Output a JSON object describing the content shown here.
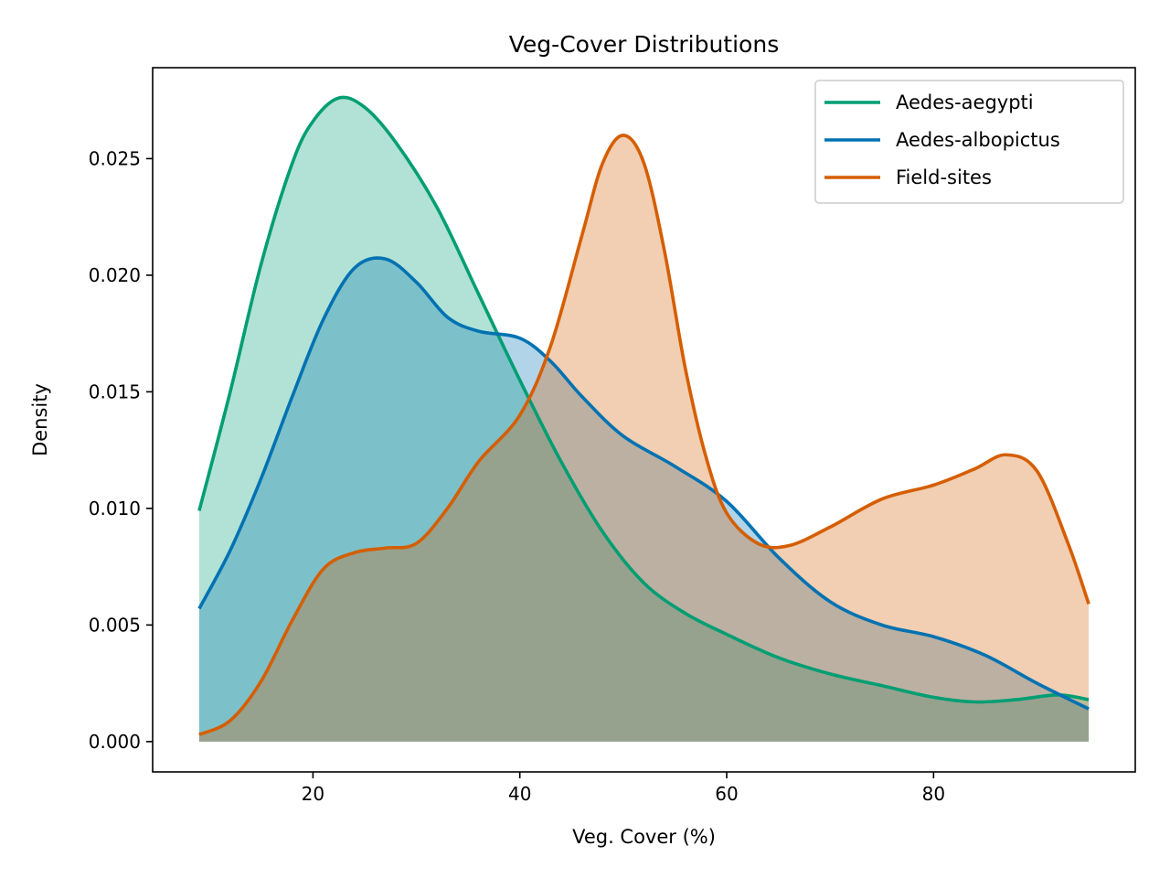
{
  "chart_data": {
    "type": "area",
    "title": "Veg-Cover Distributions",
    "xlabel": "Veg. Cover (%)",
    "ylabel": "Density",
    "xlim": [
      4.5,
      99.5
    ],
    "ylim": [
      -0.0013,
      0.0289
    ],
    "xticks": [
      20,
      40,
      60,
      80
    ],
    "xtick_labels": [
      "20",
      "40",
      "60",
      "80"
    ],
    "yticks": [
      0.0,
      0.005,
      0.01,
      0.015,
      0.02,
      0.025
    ],
    "ytick_labels": [
      "0.000",
      "0.005",
      "0.010",
      "0.015",
      "0.020",
      "0.025"
    ],
    "grid": false,
    "legend": "upper right",
    "series": [
      {
        "name": "Aedes-aegypti",
        "color": "#009e73",
        "x": [
          9,
          12,
          15,
          18,
          20,
          22.5,
          25,
          28,
          32,
          36,
          40,
          44,
          48,
          52,
          56,
          60,
          65,
          70,
          75,
          80,
          84,
          88,
          92,
          95
        ],
        "y": [
          0.0099,
          0.015,
          0.0205,
          0.0248,
          0.0266,
          0.0276,
          0.0272,
          0.0257,
          0.0229,
          0.0192,
          0.0155,
          0.012,
          0.009,
          0.0068,
          0.0055,
          0.0046,
          0.0036,
          0.0029,
          0.0024,
          0.0019,
          0.0017,
          0.0018,
          0.002,
          0.0018
        ]
      },
      {
        "name": "Aedes-albopictus",
        "color": "#0072b2",
        "x": [
          9,
          12,
          15,
          18,
          21,
          24,
          27,
          30,
          33,
          36,
          40,
          43,
          46,
          50,
          55,
          60,
          65,
          70,
          75,
          80,
          85,
          90,
          95
        ],
        "y": [
          0.0057,
          0.0082,
          0.0113,
          0.0148,
          0.0181,
          0.0203,
          0.0207,
          0.0197,
          0.0182,
          0.0176,
          0.0173,
          0.0163,
          0.0148,
          0.0131,
          0.0118,
          0.0103,
          0.0079,
          0.006,
          0.005,
          0.0045,
          0.0037,
          0.0025,
          0.0014
        ]
      },
      {
        "name": "Field-sites",
        "color": "#d55e00",
        "x": [
          9,
          12,
          15,
          18,
          21,
          24,
          27,
          30,
          33,
          36,
          40,
          43,
          46,
          48,
          50,
          52,
          54,
          56,
          58,
          60,
          63,
          66,
          70,
          75,
          80,
          84,
          87,
          90,
          93,
          95
        ],
        "y": [
          0.0003,
          0.0009,
          0.0026,
          0.0052,
          0.0074,
          0.0081,
          0.0083,
          0.0085,
          0.01,
          0.012,
          0.014,
          0.017,
          0.0217,
          0.0248,
          0.026,
          0.0248,
          0.021,
          0.016,
          0.0122,
          0.0098,
          0.0085,
          0.0084,
          0.0092,
          0.0104,
          0.011,
          0.0117,
          0.0123,
          0.0116,
          0.0085,
          0.0059
        ]
      }
    ]
  }
}
